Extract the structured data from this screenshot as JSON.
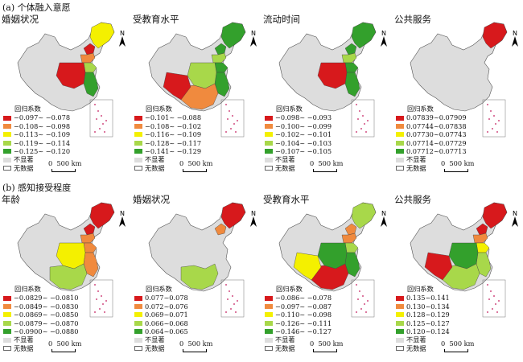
{
  "sections": [
    {
      "title": "(a) 个体融入意愿",
      "panels": [
        {
          "title": "婚姻状况",
          "legend_title": "回归系数",
          "classes": [
            {
              "label": "−0.097~ −0.078",
              "color": "#d7191c"
            },
            {
              "label": "−0.108~ −0.098",
              "color": "#f08a3e"
            },
            {
              "label": "−0.113~ −0.109",
              "color": "#f4f000"
            },
            {
              "label": "−0.119~ −0.114",
              "color": "#a8d84a"
            },
            {
              "label": "−0.125~ −0.120",
              "color": "#33a02c"
            }
          ],
          "regions": {
            "north": 2,
            "beijing": 0,
            "hebei": 1,
            "shandong": 3,
            "coast": 4,
            "central": 0,
            "south": -1,
            "west": -1
          }
        },
        {
          "title": "受教育水平",
          "legend_title": "回归系数",
          "classes": [
            {
              "label": "−0.101~ −0.088",
              "color": "#d7191c"
            },
            {
              "label": "−0.108~ −0.102",
              "color": "#f08a3e"
            },
            {
              "label": "−0.116~ −0.109",
              "color": "#f4f000"
            },
            {
              "label": "−0.128~ −0.117",
              "color": "#a8d84a"
            },
            {
              "label": "−0.141~ −0.129",
              "color": "#33a02c"
            }
          ],
          "regions": {
            "north": 4,
            "beijing": 4,
            "hebei": 3,
            "shandong": 4,
            "coast": 4,
            "central": 3,
            "south": 1,
            "west": 0
          }
        },
        {
          "title": "流动时间",
          "legend_title": "回归系数",
          "classes": [
            {
              "label": "−0.098~ −0.093",
              "color": "#d7191c"
            },
            {
              "label": "−0.100~ −0.099",
              "color": "#f08a3e"
            },
            {
              "label": "−0.102~ −0.101",
              "color": "#f4f000"
            },
            {
              "label": "−0.104~ −0.103",
              "color": "#a8d84a"
            },
            {
              "label": "−0.107~ −0.105",
              "color": "#33a02c"
            }
          ],
          "regions": {
            "north": 4,
            "beijing": 4,
            "hebei": 3,
            "shandong": 4,
            "coast": 4,
            "central": 0,
            "south": -1,
            "west": -1
          }
        },
        {
          "title": "公共服务",
          "legend_title": "回归系数",
          "classes": [
            {
              "label": "0.07839~0.07909",
              "color": "#d7191c"
            },
            {
              "label": "0.07744~0.07838",
              "color": "#f08a3e"
            },
            {
              "label": "0.07730~0.07743",
              "color": "#f4f000"
            },
            {
              "label": "0.07714~0.07729",
              "color": "#a8d84a"
            },
            {
              "label": "0.07712~0.07713",
              "color": "#33a02c"
            }
          ],
          "regions": {
            "north": 0,
            "beijing": -1,
            "hebei": -1,
            "shandong": -1,
            "coast": -1,
            "central": -1,
            "south": -1,
            "west": -1
          }
        }
      ]
    },
    {
      "title": "(b) 感知接受程度",
      "panels": [
        {
          "title": "年龄",
          "legend_title": "回归系数",
          "classes": [
            {
              "label": "−0.0829~ −0.0810",
              "color": "#d7191c"
            },
            {
              "label": "−0.0849~ −0.0830",
              "color": "#f08a3e"
            },
            {
              "label": "−0.0869~ −0.0850",
              "color": "#f4f000"
            },
            {
              "label": "−0.0879~ −0.0870",
              "color": "#a8d84a"
            },
            {
              "label": "−0.0900~ −0.0880",
              "color": "#33a02c"
            }
          ],
          "regions": {
            "north": 0,
            "beijing": 0,
            "hebei": 1,
            "shandong": 1,
            "coast": 1,
            "central": 2,
            "south": 3,
            "west": -1
          }
        },
        {
          "title": "婚姻状况",
          "legend_title": "回归系数",
          "classes": [
            {
              "label": "0.077~0.078",
              "color": "#d7191c"
            },
            {
              "label": "0.072~0.076",
              "color": "#f08a3e"
            },
            {
              "label": "0.069~0.071",
              "color": "#f4f000"
            },
            {
              "label": "0.066~0.068",
              "color": "#a8d84a"
            },
            {
              "label": "0.064~0.065",
              "color": "#33a02c"
            }
          ],
          "regions": {
            "north": 0,
            "beijing": 1,
            "hebei": -1,
            "shandong": -1,
            "coast": -1,
            "central": -1,
            "south": 3,
            "west": -1
          }
        },
        {
          "title": "受教育水平",
          "legend_title": "回归系数",
          "classes": [
            {
              "label": "−0.086~ −0.078",
              "color": "#d7191c"
            },
            {
              "label": "−0.097~ −0.087",
              "color": "#f08a3e"
            },
            {
              "label": "−0.110~ −0.098",
              "color": "#f4f000"
            },
            {
              "label": "−0.126~ −0.111",
              "color": "#a8d84a"
            },
            {
              "label": "−0.146~ −0.127",
              "color": "#33a02c"
            }
          ],
          "regions": {
            "north": 3,
            "beijing": 1,
            "hebei": 1,
            "shandong": 3,
            "coast": 4,
            "central": 4,
            "south": 0,
            "west": 2
          }
        },
        {
          "title": "公共服务",
          "legend_title": "回归系数",
          "classes": [
            {
              "label": "0.135~0.141",
              "color": "#d7191c"
            },
            {
              "label": "0.130~0.134",
              "color": "#f08a3e"
            },
            {
              "label": "0.128~0.129",
              "color": "#f4f000"
            },
            {
              "label": "0.125~0.127",
              "color": "#a8d84a"
            },
            {
              "label": "0.120~0.124",
              "color": "#33a02c"
            }
          ],
          "regions": {
            "north": 0,
            "beijing": 0,
            "hebei": 1,
            "shandong": 2,
            "coast": 3,
            "central": 4,
            "south": 3,
            "west": 0
          }
        }
      ]
    }
  ],
  "legend_common": {
    "not_significant_label": "不显著",
    "not_significant_color": "#dddddd",
    "no_data_label": "无数据",
    "scale_label": "500 km",
    "scale_zero": "0"
  },
  "north_label": "N"
}
